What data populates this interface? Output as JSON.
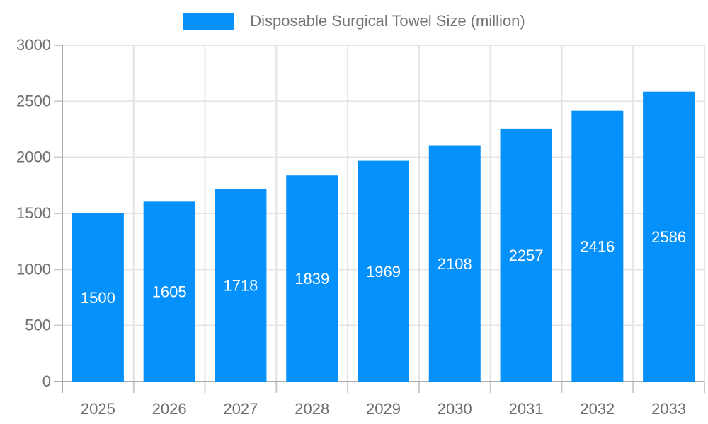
{
  "chart_data": {
    "type": "bar",
    "title": "Disposable Surgical Towel Size (million)",
    "categories": [
      "2025",
      "2026",
      "2027",
      "2028",
      "2029",
      "2030",
      "2031",
      "2032",
      "2033"
    ],
    "series": [
      {
        "name": "Disposable Surgical Towel Size (million)",
        "values": [
          1500,
          1605,
          1718,
          1839,
          1969,
          2108,
          2257,
          2416,
          2586
        ]
      }
    ],
    "xlabel": "",
    "ylabel": "",
    "ylim": [
      0,
      3000
    ],
    "y_ticks": [
      0,
      500,
      1000,
      1500,
      2000,
      2500,
      3000
    ],
    "grid": true,
    "legend_position": "top-center",
    "bar_labels_inside": true,
    "colors": {
      "bar": "#0591FB",
      "grid": "#E3E3E3",
      "axis": "#ABABAB",
      "tick": "#C9C9C9",
      "tick_label": "#6E6E6E",
      "value_label": "#FFFFFF",
      "legend_text": "#757575"
    }
  }
}
